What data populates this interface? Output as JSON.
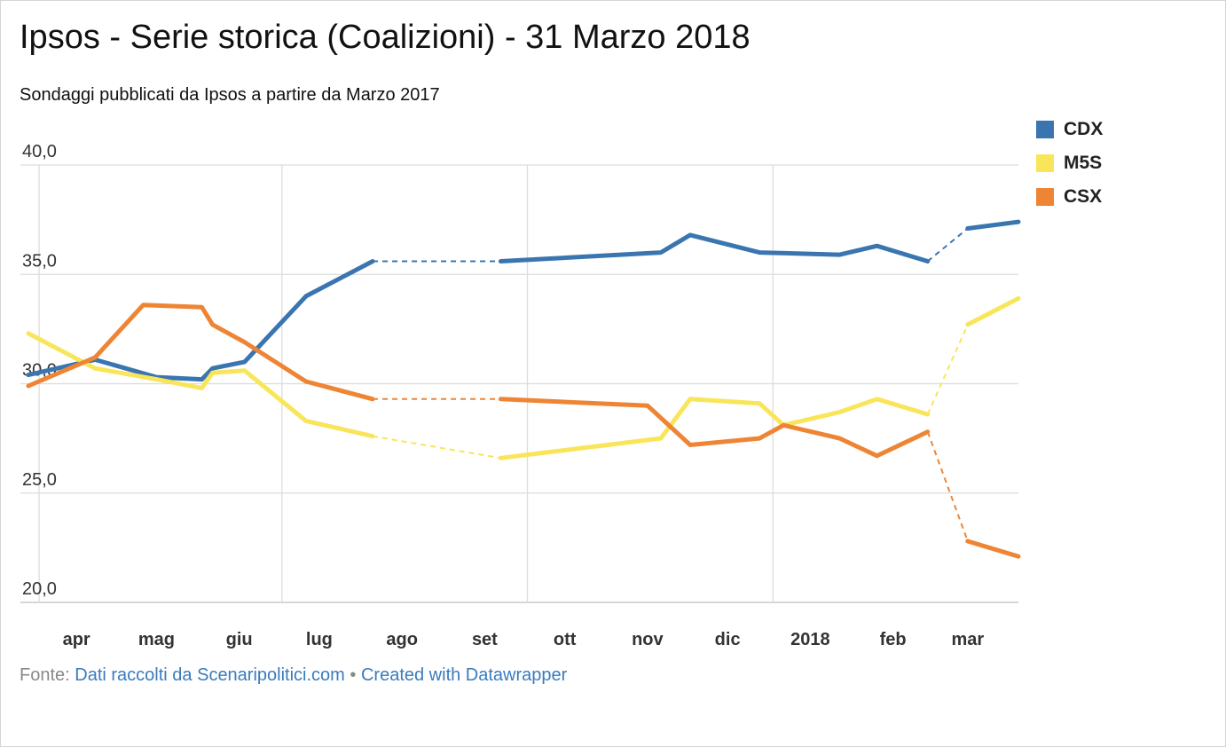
{
  "title": "Ipsos - Serie storica (Coalizioni) - 31 Marzo 2018",
  "subtitle": "Sondaggi pubblicati da Ipsos a partire da Marzo 2017",
  "footer": {
    "source_prefix": "Fonte:",
    "source_link": "Dati raccolti da Scenaripolitici.com",
    "separator": "•",
    "credit_link": "Created with Datawrapper"
  },
  "legend": [
    {
      "label": "CDX",
      "color": "#3a75b0"
    },
    {
      "label": "M5S",
      "color": "#f9e55a"
    },
    {
      "label": "CSX",
      "color": "#ee8535"
    }
  ],
  "chart_data": {
    "type": "line",
    "title": "Ipsos - Serie storica (Coalizioni) - 31 Marzo 2018",
    "subtitle": "Sondaggi pubblicati da Ipsos a partire da Marzo 2017",
    "xlabel": "",
    "ylabel": "",
    "ylim": [
      20,
      40
    ],
    "yticks": [
      "40,0",
      "35,0",
      "30,0",
      "25,0",
      "20,0"
    ],
    "ytick_values": [
      40,
      35,
      30,
      25,
      20
    ],
    "xlim": [
      "2017-03-25",
      "2018-04-03"
    ],
    "xticks": [
      {
        "label": "apr",
        "date": "2017-04-15"
      },
      {
        "label": "mag",
        "date": "2017-05-15"
      },
      {
        "label": "giu",
        "date": "2017-06-15"
      },
      {
        "label": "lug",
        "date": "2017-07-15"
      },
      {
        "label": "ago",
        "date": "2017-08-15"
      },
      {
        "label": "set",
        "date": "2017-09-15"
      },
      {
        "label": "ott",
        "date": "2017-10-15"
      },
      {
        "label": "nov",
        "date": "2017-11-15"
      },
      {
        "label": "dic",
        "date": "2017-12-15"
      },
      {
        "label": "2018",
        "date": "2018-01-15"
      },
      {
        "label": "feb",
        "date": "2018-02-15"
      },
      {
        "label": "mar",
        "date": "2018-03-15"
      }
    ],
    "gridlines_x": [
      "2017-04-01",
      "2017-07-01",
      "2017-10-01",
      "2018-01-01"
    ],
    "grid": true,
    "legend_position": "top-right",
    "series": [
      {
        "name": "CDX",
        "color": "#3a75b0",
        "points": [
          {
            "date": "2017-03-28",
            "value": 30.4
          },
          {
            "date": "2017-04-22",
            "value": 31.1
          },
          {
            "date": "2017-05-15",
            "value": 30.3
          },
          {
            "date": "2017-06-01",
            "value": 30.2
          },
          {
            "date": "2017-06-05",
            "value": 30.7
          },
          {
            "date": "2017-06-17",
            "value": 31.0
          },
          {
            "date": "2017-07-10",
            "value": 34.0
          },
          {
            "date": "2017-08-04",
            "value": 35.6
          },
          {
            "date": "2017-09-21",
            "value": 35.6,
            "gap_before": true
          },
          {
            "date": "2017-11-20",
            "value": 36.0
          },
          {
            "date": "2017-12-01",
            "value": 36.8
          },
          {
            "date": "2017-12-27",
            "value": 36.0
          },
          {
            "date": "2018-01-26",
            "value": 35.9
          },
          {
            "date": "2018-02-09",
            "value": 36.3
          },
          {
            "date": "2018-02-28",
            "value": 35.6
          },
          {
            "date": "2018-03-15",
            "value": 37.1,
            "gap_before": true
          },
          {
            "date": "2018-04-03",
            "value": 37.4
          }
        ]
      },
      {
        "name": "M5S",
        "color": "#f9e55a",
        "points": [
          {
            "date": "2017-03-28",
            "value": 32.3
          },
          {
            "date": "2017-04-22",
            "value": 30.7
          },
          {
            "date": "2017-05-15",
            "value": 30.2
          },
          {
            "date": "2017-06-01",
            "value": 29.8
          },
          {
            "date": "2017-06-05",
            "value": 30.5
          },
          {
            "date": "2017-06-17",
            "value": 30.6
          },
          {
            "date": "2017-07-10",
            "value": 28.3
          },
          {
            "date": "2017-08-04",
            "value": 27.6
          },
          {
            "date": "2017-09-21",
            "value": 26.6,
            "gap_before": true
          },
          {
            "date": "2017-11-20",
            "value": 27.5
          },
          {
            "date": "2017-12-01",
            "value": 29.3
          },
          {
            "date": "2017-12-27",
            "value": 29.1
          },
          {
            "date": "2018-01-05",
            "value": 28.1
          },
          {
            "date": "2018-01-26",
            "value": 28.7
          },
          {
            "date": "2018-02-09",
            "value": 29.3
          },
          {
            "date": "2018-02-28",
            "value": 28.6
          },
          {
            "date": "2018-03-15",
            "value": 32.7,
            "gap_before": true
          },
          {
            "date": "2018-04-03",
            "value": 33.9
          }
        ]
      },
      {
        "name": "CSX",
        "color": "#ee8535",
        "points": [
          {
            "date": "2017-03-28",
            "value": 29.9
          },
          {
            "date": "2017-04-22",
            "value": 31.2
          },
          {
            "date": "2017-05-10",
            "value": 33.6
          },
          {
            "date": "2017-06-01",
            "value": 33.5
          },
          {
            "date": "2017-06-05",
            "value": 32.7
          },
          {
            "date": "2017-06-17",
            "value": 31.9
          },
          {
            "date": "2017-07-10",
            "value": 30.1
          },
          {
            "date": "2017-08-04",
            "value": 29.3
          },
          {
            "date": "2017-09-21",
            "value": 29.3,
            "gap_before": true
          },
          {
            "date": "2017-11-15",
            "value": 29.0
          },
          {
            "date": "2017-12-01",
            "value": 27.2
          },
          {
            "date": "2017-12-27",
            "value": 27.5
          },
          {
            "date": "2018-01-05",
            "value": 28.1
          },
          {
            "date": "2018-01-26",
            "value": 27.5
          },
          {
            "date": "2018-02-09",
            "value": 26.7
          },
          {
            "date": "2018-02-28",
            "value": 27.8
          },
          {
            "date": "2018-03-15",
            "value": 22.8,
            "gap_before": true
          },
          {
            "date": "2018-04-03",
            "value": 22.1
          }
        ]
      }
    ]
  }
}
